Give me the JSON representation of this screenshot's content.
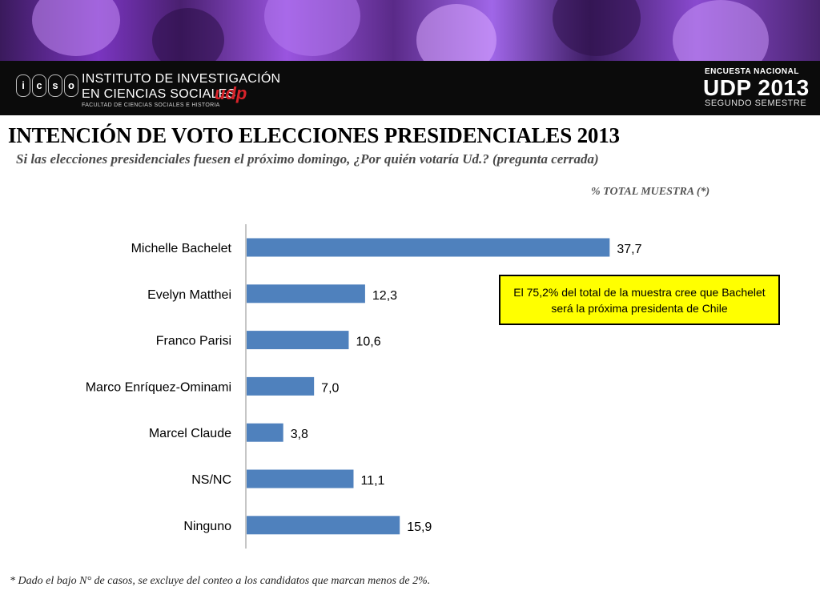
{
  "header": {
    "institute_line1": "INSTITUTO DE INVESTIGACIÓN",
    "institute_line2": "EN CIENCIAS SOCIALES",
    "institute_brand": "udp",
    "institute_line3": "FACULTAD DE CIENCIAS SOCIALES E HISTORIA",
    "logo_letters": [
      "i",
      "c",
      "s",
      "o"
    ],
    "survey_line1": "ENCUESTA NACIONAL",
    "survey_line2": "UDP 2013",
    "survey_line3": "SEGUNDO SEMESTRE"
  },
  "title": "INTENCIÓN DE VOTO ELECCIONES PRESIDENCIALES 2013",
  "subtitle": "Si las elecciones presidenciales fuesen el próximo domingo, ¿Por quién votaría Ud.? (pregunta cerrada)",
  "measure_label": "% TOTAL MUESTRA (*)",
  "callout": "El 75,2% del total de la  muestra cree que Bachelet será la próxima presidenta de Chile",
  "footnote": "* Dado el bajo N° de casos, se excluye del conteo a los candidatos que marcan menos de 2%.",
  "colors": {
    "bar": "#4f81bd",
    "callout_bg": "#ffff00",
    "banner_accent": "#8a4ad0",
    "brand_red": "#d8232a"
  },
  "chart_data": {
    "type": "bar",
    "orientation": "horizontal",
    "categories": [
      "Michelle Bachelet",
      "Evelyn Matthei",
      "Franco Parisi",
      "Marco Enríquez-Ominami",
      "Marcel Claude",
      "NS/NC",
      "Ninguno"
    ],
    "values": [
      37.7,
      12.3,
      10.6,
      7.0,
      3.8,
      11.1,
      15.9
    ],
    "value_labels": [
      "37,7",
      "12,3",
      "10,6",
      "7,0",
      "3,8",
      "11,1",
      "15,9"
    ],
    "xlim": [
      0,
      40
    ],
    "grid": false,
    "legend": "none"
  }
}
